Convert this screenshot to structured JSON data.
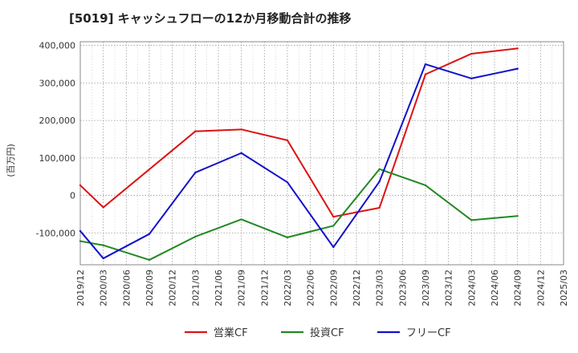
{
  "chart_data": {
    "type": "line",
    "title": "[5019]  キャッシュフローの12か月移動合計の推移",
    "xlabel": "",
    "ylabel": "(百万円)",
    "ylim": [
      -185000,
      410000
    ],
    "yticks": [
      400000,
      300000,
      200000,
      100000,
      0,
      -100000
    ],
    "ytick_labels": [
      "400,000",
      "300,000",
      "200,000",
      "100,000",
      "0",
      "-100,000"
    ],
    "x_labels": [
      "2019/12",
      "2020/03",
      "2020/06",
      "2020/09",
      "2020/12",
      "2021/03",
      "2021/06",
      "2021/09",
      "2021/12",
      "2022/03",
      "2022/06",
      "2022/09",
      "2022/12",
      "2023/03",
      "2023/06",
      "2023/09",
      "2023/12",
      "2024/03",
      "2024/06",
      "2024/09",
      "2024/12",
      "2025/03"
    ],
    "grid": true,
    "legend_position": "bottom",
    "series": [
      {
        "name": "営業CF",
        "color": "#dd1111",
        "points": [
          {
            "x": "2019/12",
            "y": 27000
          },
          {
            "x": "2020/03",
            "y": -32000
          },
          {
            "x": "2021/03",
            "y": 171000
          },
          {
            "x": "2021/09",
            "y": 176000
          },
          {
            "x": "2022/03",
            "y": 147000
          },
          {
            "x": "2022/09",
            "y": -57000
          },
          {
            "x": "2023/03",
            "y": -33000
          },
          {
            "x": "2023/09",
            "y": 323000
          },
          {
            "x": "2024/03",
            "y": 378000
          },
          {
            "x": "2024/09",
            "y": 392000
          }
        ]
      },
      {
        "name": "投資CF",
        "color": "#228822",
        "points": [
          {
            "x": "2019/12",
            "y": -122000
          },
          {
            "x": "2020/03",
            "y": -133000
          },
          {
            "x": "2020/09",
            "y": -172000
          },
          {
            "x": "2021/03",
            "y": -110000
          },
          {
            "x": "2021/09",
            "y": -64000
          },
          {
            "x": "2022/03",
            "y": -112000
          },
          {
            "x": "2022/09",
            "y": -81000
          },
          {
            "x": "2023/03",
            "y": 70000
          },
          {
            "x": "2023/09",
            "y": 27000
          },
          {
            "x": "2024/03",
            "y": -66000
          },
          {
            "x": "2024/09",
            "y": -55000
          }
        ]
      },
      {
        "name": "フリーCF",
        "color": "#1111cc",
        "points": [
          {
            "x": "2019/12",
            "y": -95000
          },
          {
            "x": "2020/03",
            "y": -168000
          },
          {
            "x": "2020/09",
            "y": -103000
          },
          {
            "x": "2021/03",
            "y": 61000
          },
          {
            "x": "2021/09",
            "y": 113000
          },
          {
            "x": "2022/03",
            "y": 35000
          },
          {
            "x": "2022/09",
            "y": -138000
          },
          {
            "x": "2023/03",
            "y": 37000
          },
          {
            "x": "2023/09",
            "y": 350000
          },
          {
            "x": "2024/03",
            "y": 312000
          },
          {
            "x": "2024/09",
            "y": 338000
          }
        ]
      }
    ]
  }
}
